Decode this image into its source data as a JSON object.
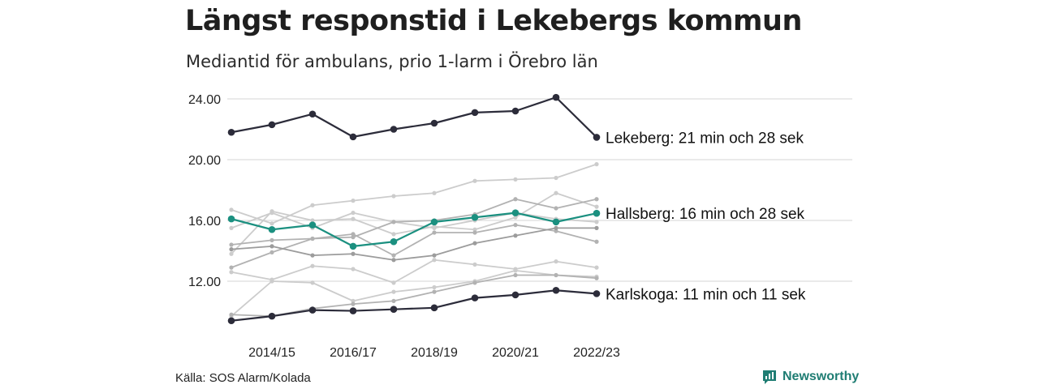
{
  "header": {
    "title": "Längst responstid i Lekebergs kommun",
    "subtitle": "Mediantid för ambulans, prio 1-larm i Örebro län"
  },
  "footer": {
    "source": "Källa: SOS Alarm/Kolada",
    "brand": "Newsworthy"
  },
  "colors": {
    "dark": "#2c2c3a",
    "teal": "#1b9080",
    "gray_light": "#cccccc",
    "gray_mid": "#b2b2b2",
    "gray_dark": "#9c9c9c",
    "grid": "#dddddd",
    "brand": "#1f7d73"
  },
  "chart_data": {
    "type": "line",
    "x": [
      "2013/14",
      "2014/15",
      "2015/16",
      "2016/17",
      "2017/18",
      "2018/19",
      "2019/20",
      "2020/21",
      "2021/22",
      "2022/23"
    ],
    "x_tick_labels": [
      "2014/15",
      "2016/17",
      "2018/19",
      "2020/21",
      "2022/23"
    ],
    "y_ticks": [
      "12.00",
      "16.00",
      "20.00",
      "24.00"
    ],
    "y_tick_values": [
      12,
      16,
      20,
      24
    ],
    "ylim": [
      9.4,
      24.8
    ],
    "grid": true,
    "highlighted": [
      {
        "name": "Lekeberg",
        "label": "Lekeberg: 21 min och 28 sek",
        "color": "#2c2c3a",
        "values": [
          21.8,
          22.3,
          23.0,
          21.5,
          22.0,
          22.4,
          23.1,
          23.2,
          24.1,
          21.47
        ]
      },
      {
        "name": "Hallsberg",
        "label": "Hallsberg: 16 min och 28 sek",
        "color": "#1b9080",
        "values": [
          16.1,
          15.4,
          15.7,
          14.3,
          14.6,
          15.9,
          16.2,
          16.5,
          15.9,
          16.47
        ]
      },
      {
        "name": "Karlskoga",
        "label": "Karlskoga: 11 min och 11 sek",
        "color": "#2c2c3a",
        "values": [
          9.4,
          9.7,
          10.1,
          10.05,
          10.15,
          10.25,
          10.9,
          11.1,
          11.4,
          11.18
        ]
      }
    ],
    "background": [
      {
        "color": "#cccccc",
        "values": [
          13.8,
          16.6,
          16.0,
          16.1,
          15.1,
          15.6,
          15.4,
          16.2,
          17.8,
          16.9
        ]
      },
      {
        "color": "#cccccc",
        "values": [
          16.7,
          15.8,
          17.0,
          17.3,
          17.6,
          17.8,
          18.6,
          18.7,
          18.8,
          19.7
        ]
      },
      {
        "color": "#cccccc",
        "values": [
          15.5,
          16.5,
          15.5,
          16.5,
          15.9,
          15.5,
          16.0,
          16.5,
          16.1,
          15.9
        ]
      },
      {
        "color": "#b2b2b2",
        "values": [
          12.9,
          13.9,
          14.8,
          14.9,
          15.9,
          16.0,
          16.4,
          17.4,
          16.8,
          17.4
        ]
      },
      {
        "color": "#b2b2b2",
        "values": [
          14.4,
          14.7,
          14.8,
          15.1,
          13.7,
          15.2,
          15.2,
          15.7,
          15.3,
          14.6
        ]
      },
      {
        "color": "#9c9c9c",
        "values": [
          14.1,
          14.3,
          13.7,
          13.8,
          13.4,
          13.7,
          14.5,
          15.0,
          15.5,
          15.5
        ]
      },
      {
        "color": "#cccccc",
        "values": [
          12.6,
          12.1,
          13.0,
          12.8,
          11.9,
          13.4,
          13.1,
          12.8,
          13.3,
          12.9
        ]
      },
      {
        "color": "#cccccc",
        "values": [
          9.7,
          12.0,
          11.9,
          10.7,
          11.3,
          11.6,
          12.0,
          12.7,
          12.4,
          12.3
        ]
      },
      {
        "color": "#b2b2b2",
        "values": [
          9.8,
          9.7,
          10.2,
          10.5,
          10.7,
          11.3,
          11.9,
          12.4,
          12.4,
          12.2
        ]
      }
    ]
  }
}
